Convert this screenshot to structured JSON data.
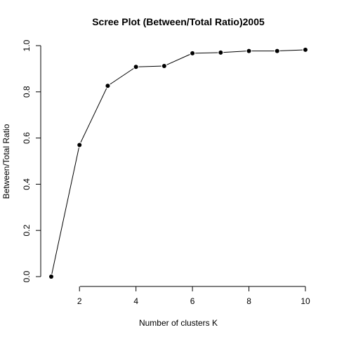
{
  "chart_data": {
    "type": "line",
    "title": "Scree Plot (Between/Total Ratio)2005",
    "xlabel": "Number of clusters K",
    "ylabel": "Between/Total Ratio",
    "x": [
      1,
      2,
      3,
      4,
      5,
      6,
      7,
      8,
      9,
      10
    ],
    "series": [
      {
        "values": [
          0.0,
          0.57,
          0.826,
          0.908,
          0.912,
          0.967,
          0.97,
          0.977,
          0.977,
          0.982
        ]
      }
    ],
    "xlim": [
      1,
      10
    ],
    "ylim": [
      0,
      1
    ],
    "x_ticks": [
      "2",
      "4",
      "6",
      "8",
      "10"
    ],
    "y_ticks": [
      "0.0",
      "0.2",
      "0.4",
      "0.6",
      "0.8",
      "1.0"
    ],
    "grid": false,
    "color": "#000000"
  }
}
